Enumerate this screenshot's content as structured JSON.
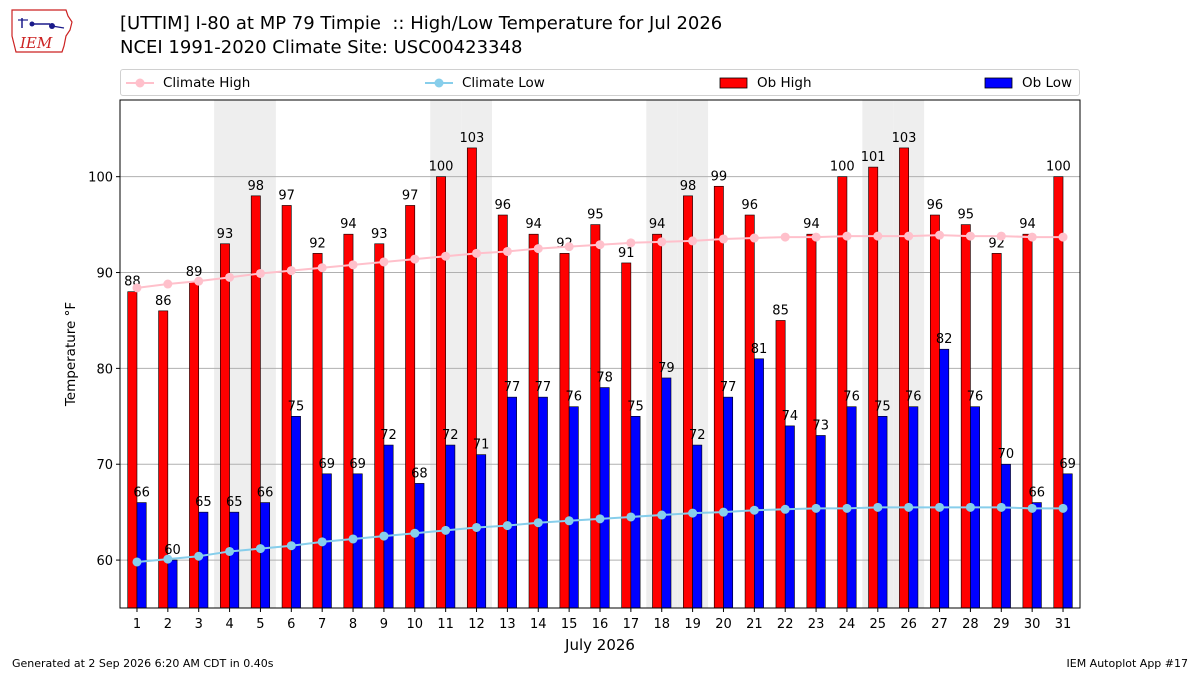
{
  "header": {
    "logo_text": "IEM",
    "title_line1": "[UTTIM] I-80 at MP 79 Timpie  :: High/Low Temperature for Jul 2026",
    "title_line2": "NCEI 1991-2020 Climate Site: USC00423348"
  },
  "colors": {
    "climate_high": "#ffc0cb",
    "climate_low": "#87ceeb",
    "ob_high": "#ff0000",
    "ob_low": "#0000ff",
    "weekend_band": "#eeeeee",
    "grid": "#b0b0b0",
    "logo": "#cc2222"
  },
  "chart_data": {
    "type": "bar",
    "title": "[UTTIM] I-80 at MP 79 Timpie  :: High/Low Temperature for Jul 2026",
    "subtitle": "NCEI 1991-2020 Climate Site: USC00423348",
    "xlabel": "July 2026",
    "ylabel": "Temperature °F",
    "categories": [
      "1",
      "2",
      "3",
      "4",
      "5",
      "6",
      "7",
      "8",
      "9",
      "10",
      "11",
      "12",
      "13",
      "14",
      "15",
      "16",
      "17",
      "18",
      "19",
      "20",
      "21",
      "22",
      "23",
      "24",
      "25",
      "26",
      "27",
      "28",
      "29",
      "30",
      "31"
    ],
    "series": [
      {
        "name": "Ob High",
        "kind": "bar",
        "color": "#ff0000",
        "values": [
          88,
          86,
          89,
          93,
          98,
          97,
          92,
          94,
          93,
          97,
          100,
          103,
          96,
          94,
          92,
          95,
          91,
          94,
          98,
          99,
          96,
          85,
          94,
          100,
          101,
          103,
          96,
          95,
          92,
          94,
          100
        ]
      },
      {
        "name": "Ob Low",
        "kind": "bar",
        "color": "#0000ff",
        "values": [
          66,
          60,
          65,
          65,
          66,
          75,
          69,
          69,
          72,
          68,
          72,
          71,
          77,
          77,
          76,
          78,
          75,
          79,
          72,
          77,
          81,
          74,
          73,
          76,
          75,
          76,
          82,
          76,
          70,
          66,
          69
        ]
      },
      {
        "name": "Climate High",
        "kind": "line",
        "color": "#ffc0cb",
        "values": [
          88.4,
          88.8,
          89.1,
          89.5,
          89.9,
          90.2,
          90.5,
          90.8,
          91.1,
          91.4,
          91.7,
          92.0,
          92.2,
          92.5,
          92.7,
          92.9,
          93.1,
          93.2,
          93.3,
          93.5,
          93.6,
          93.7,
          93.7,
          93.8,
          93.8,
          93.8,
          93.9,
          93.8,
          93.8,
          93.7,
          93.7
        ]
      },
      {
        "name": "Climate Low",
        "kind": "line",
        "color": "#87ceeb",
        "values": [
          59.8,
          60.1,
          60.4,
          60.9,
          61.2,
          61.5,
          61.9,
          62.2,
          62.5,
          62.8,
          63.1,
          63.4,
          63.6,
          63.9,
          64.1,
          64.3,
          64.5,
          64.7,
          64.9,
          65.0,
          65.2,
          65.3,
          65.4,
          65.4,
          65.5,
          65.5,
          65.5,
          65.5,
          65.5,
          65.4,
          65.4
        ]
      }
    ],
    "ylim": [
      55,
      108
    ],
    "yticks": [
      60,
      70,
      80,
      90,
      100
    ],
    "xticks": [
      "1",
      "2",
      "3",
      "4",
      "5",
      "6",
      "7",
      "8",
      "9",
      "10",
      "11",
      "12",
      "13",
      "14",
      "15",
      "16",
      "17",
      "18",
      "19",
      "20",
      "21",
      "22",
      "23",
      "24",
      "25",
      "26",
      "27",
      "28",
      "29",
      "30",
      "31"
    ],
    "weekend_days": [
      4,
      5,
      11,
      12,
      18,
      19,
      25,
      26
    ],
    "grid": "horizontal",
    "legend": "top"
  },
  "legend": {
    "climate_high": "Climate High",
    "climate_low": "Climate Low",
    "ob_high": "Ob High",
    "ob_low": "Ob Low"
  },
  "footer": {
    "generated": "Generated at 2 Sep 2026 6:20 AM CDT in 0.40s",
    "app": "IEM Autoplot App #17"
  }
}
